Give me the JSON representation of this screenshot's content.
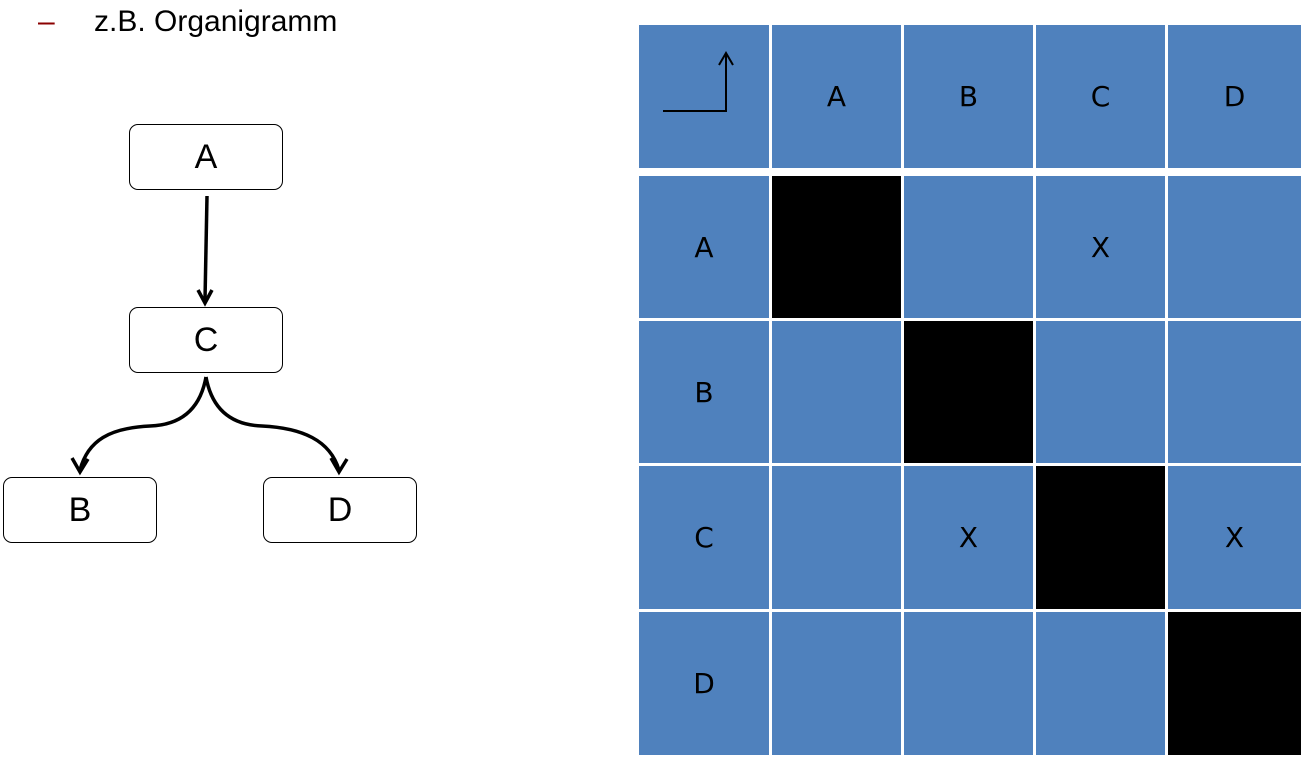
{
  "bullet": {
    "marker": "–",
    "text": "z.B. Organigramm"
  },
  "org_chart": {
    "nodes": {
      "a": "A",
      "c": "C",
      "b": "B",
      "d": "D"
    },
    "edges": [
      {
        "from": "A",
        "to": "C"
      },
      {
        "from": "C",
        "to": "B"
      },
      {
        "from": "C",
        "to": "D"
      }
    ]
  },
  "matrix": {
    "corner_icon": "corner-arrow-icon",
    "columns": [
      "A",
      "B",
      "C",
      "D"
    ],
    "rows": [
      {
        "label": "A",
        "cells": [
          "",
          "",
          "X",
          ""
        ]
      },
      {
        "label": "B",
        "cells": [
          "",
          "",
          "",
          ""
        ]
      },
      {
        "label": "C",
        "cells": [
          "",
          "X",
          "",
          "X"
        ]
      },
      {
        "label": "D",
        "cells": [
          "",
          "",
          "",
          ""
        ]
      }
    ],
    "colors": {
      "cell": "#4f81bd",
      "diagonal": "#000000",
      "grid": "#ffffff"
    }
  }
}
